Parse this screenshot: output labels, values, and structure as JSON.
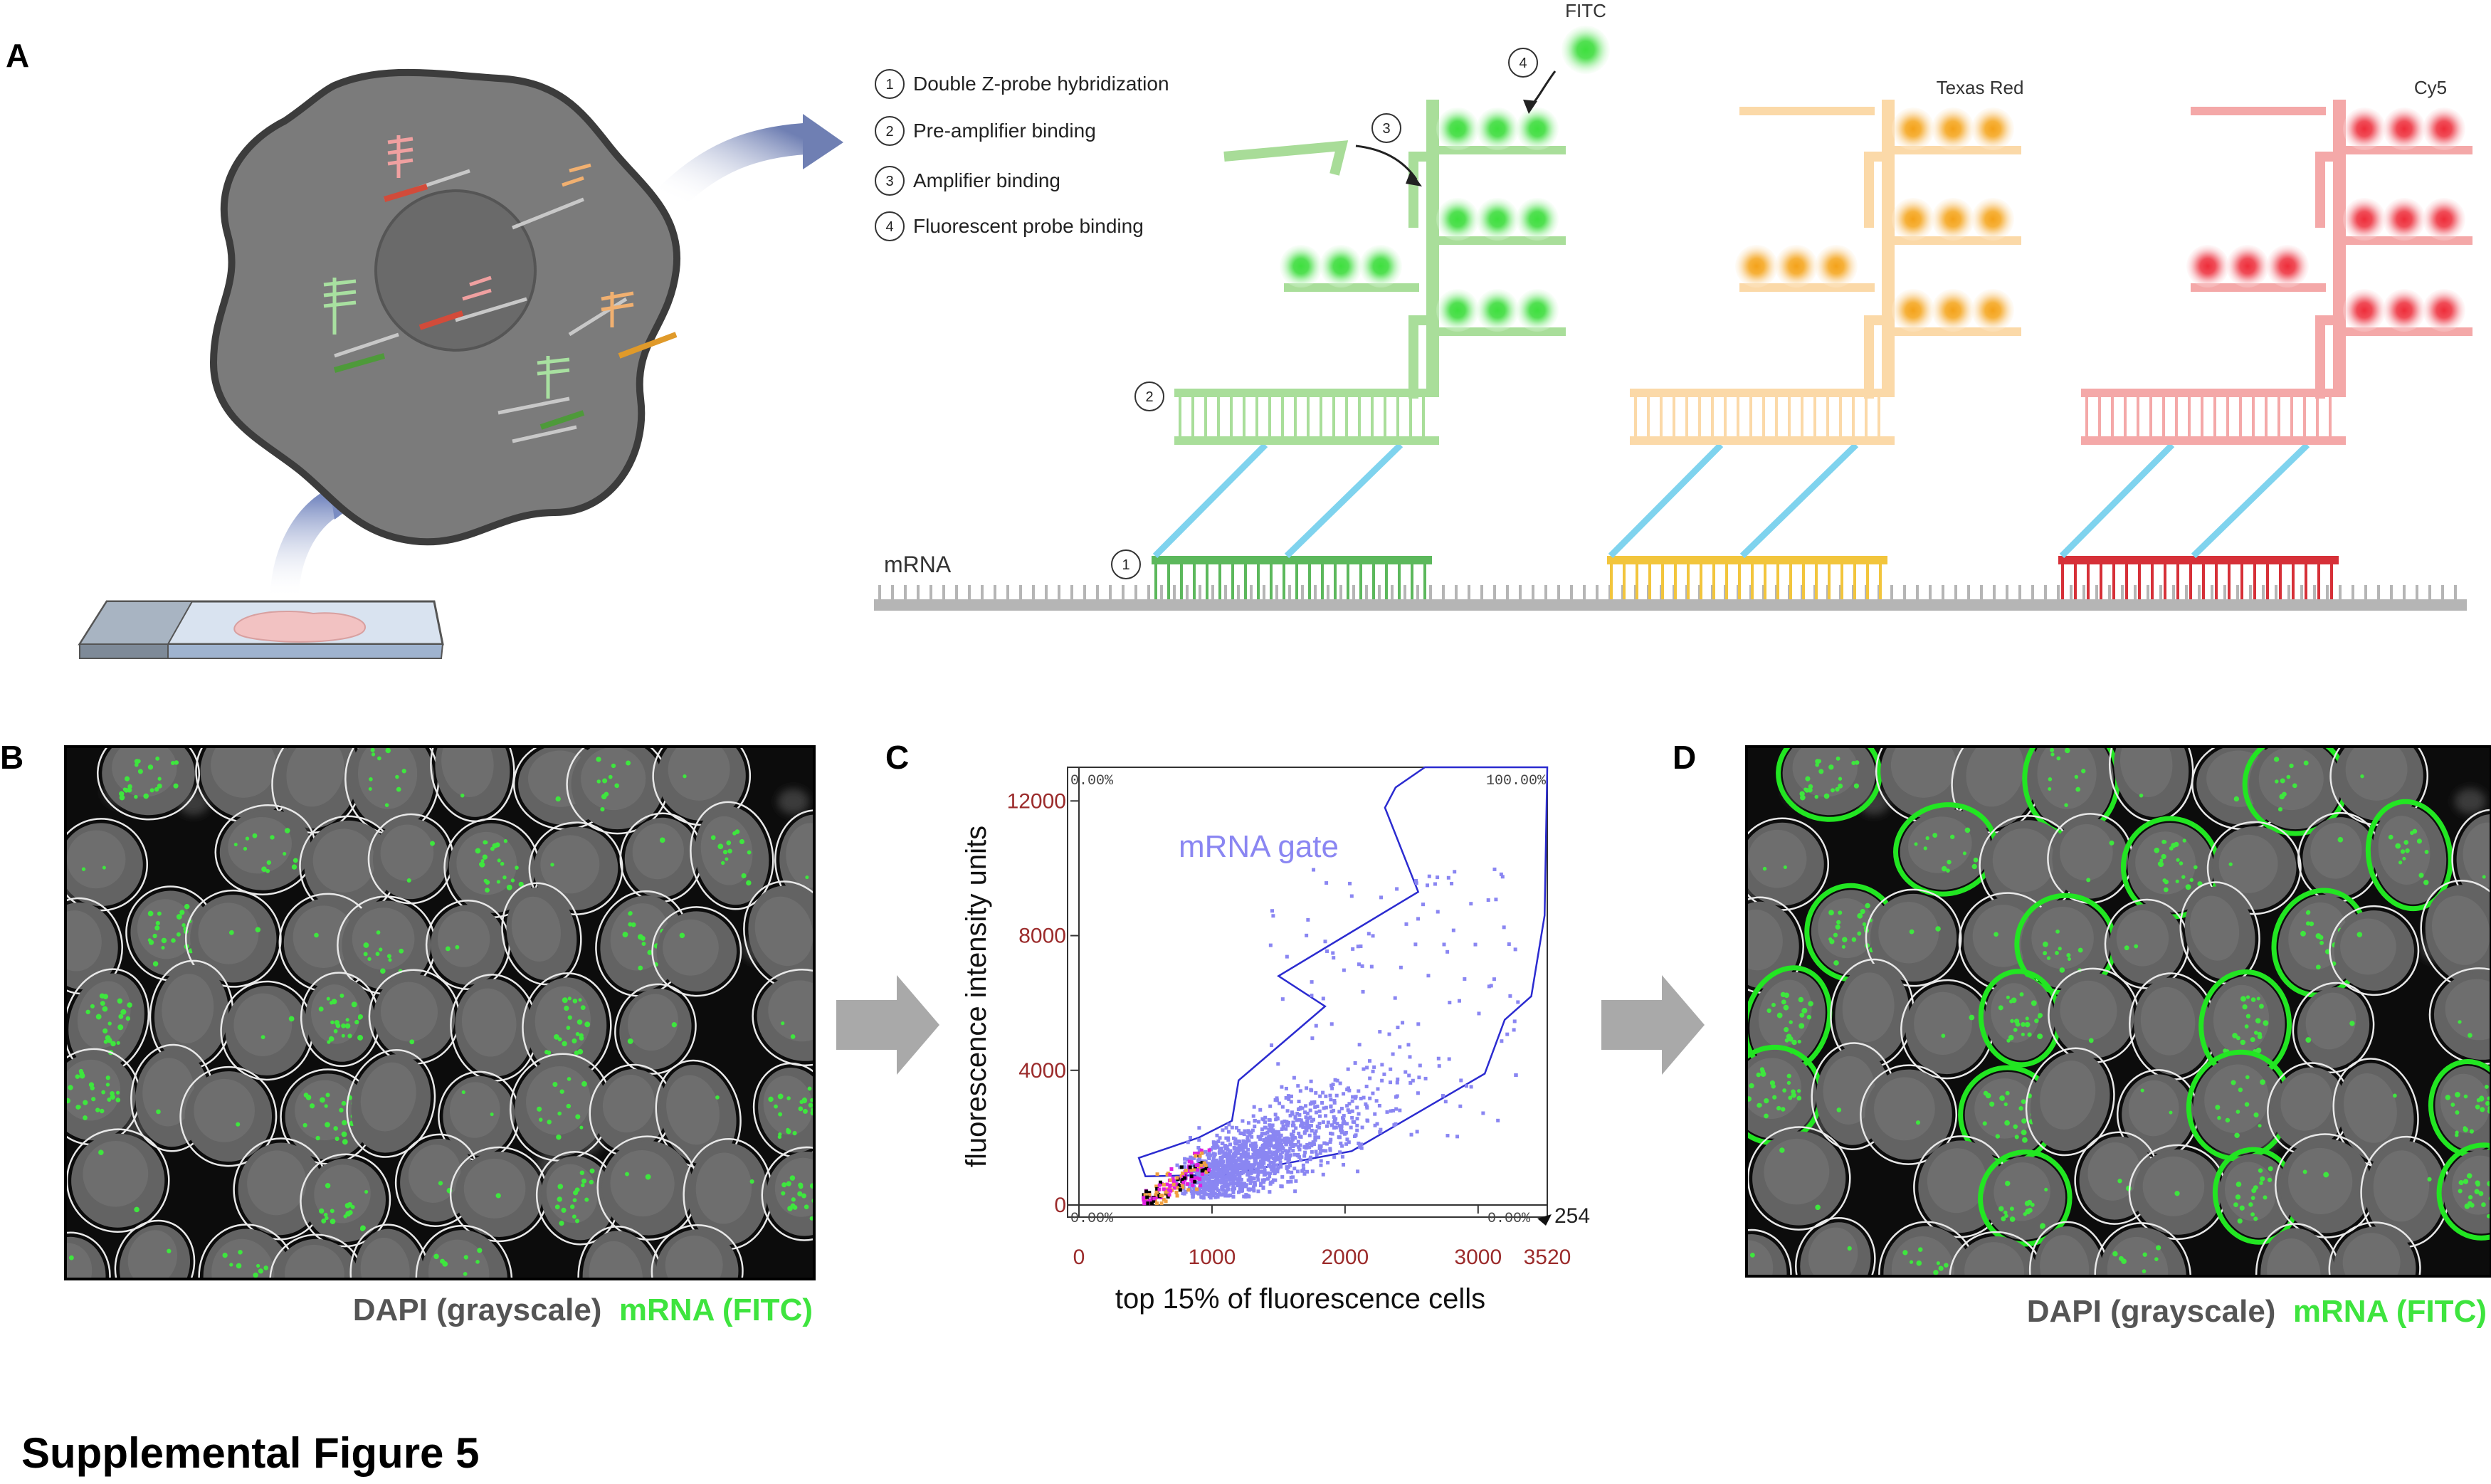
{
  "panels": {
    "a": "A",
    "b": "B",
    "c": "C",
    "d": "D"
  },
  "steps": [
    {
      "num": "1",
      "text": "Double Z-probe hybridization"
    },
    {
      "num": "2",
      "text": "Pre-amplifier binding"
    },
    {
      "num": "3",
      "text": "Amplifier binding"
    },
    {
      "num": "4",
      "text": "Fluorescent probe binding"
    }
  ],
  "dyes": [
    {
      "name": "FITC",
      "color": "#78e078"
    },
    {
      "name": "Texas Red",
      "color": "#f8c98a"
    },
    {
      "name": "Cy5",
      "color": "#f08a8a"
    }
  ],
  "mrna_label": "mRNA",
  "colors": {
    "green_probe": "#62b862",
    "yellow_probe": "#f0c53a",
    "red_probe": "#d63a3a",
    "linker": "#7fd3ee",
    "backbone": "#b5b5b5"
  },
  "caption": {
    "gray": "DAPI (grayscale)",
    "green": "mRNA (FITC)"
  },
  "figure_title": "Supplemental Figure 5",
  "chart_data": {
    "type": "scatter",
    "xlabel": "top 15% of fluorescence cells",
    "ylabel": "fluorescence intensity units",
    "xlim": [
      0,
      3520
    ],
    "ylim": [
      0,
      13000
    ],
    "x_ticks": [
      "0",
      "1000",
      "2000",
      "3000",
      "3520"
    ],
    "y_ticks": [
      "0",
      "4000",
      "8000",
      "12000"
    ],
    "x_tick_values": [
      0,
      1000,
      2000,
      3000,
      3520
    ],
    "y_tick_values": [
      0,
      4000,
      8000,
      12000
    ],
    "quadrant_labels": {
      "top_left": "0.00%",
      "top_right": "100.00%",
      "bottom_left": "0.00%",
      "bottom_right": "0.00%"
    },
    "corner_value": "254",
    "gate": {
      "label": "mRNA gate",
      "polygon": [
        [
          450,
          1400
        ],
        [
          900,
          2000
        ],
        [
          1150,
          2500
        ],
        [
          1200,
          3700
        ],
        [
          1850,
          5900
        ],
        [
          1500,
          6800
        ],
        [
          2550,
          9300
        ],
        [
          2300,
          11800
        ],
        [
          2380,
          12400
        ],
        [
          2600,
          13000
        ],
        [
          3520,
          13000
        ],
        [
          3500,
          8600
        ],
        [
          3400,
          6200
        ],
        [
          3200,
          5500
        ],
        [
          3050,
          3900
        ],
        [
          2050,
          1600
        ],
        [
          1100,
          900
        ],
        [
          500,
          850
        ]
      ]
    },
    "gate_points_approx_count": 2200,
    "background_points_note": ""
  }
}
